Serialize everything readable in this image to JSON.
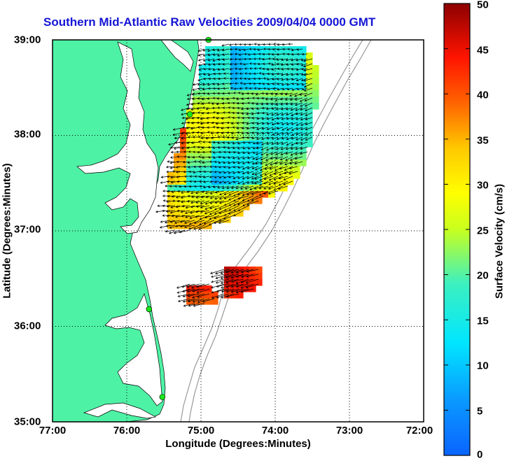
{
  "title": "Southern Mid-Atlantic Raw Velocities 2009/04/04 0000 GMT",
  "x_axis": {
    "label": "Longitude (Degrees:Minutes)",
    "ticks": [
      "77:00",
      "76:00",
      "75:00",
      "74:00",
      "73:00",
      "72:00"
    ]
  },
  "y_axis": {
    "label": "Latitude (Degrees:Minutes)",
    "ticks": [
      "39:00",
      "38:00",
      "37:00",
      "36:00",
      "35:00"
    ]
  },
  "colorbar": {
    "label": "Surface Velocity (cm/s)",
    "ticks": [
      "50",
      "45",
      "40",
      "35",
      "30",
      "25",
      "20",
      "15",
      "10",
      "5",
      "0"
    ],
    "range": [
      0,
      50
    ],
    "colormap": "jet"
  },
  "colors": {
    "land": "#4ef2a5",
    "water": "#ffffff",
    "title": "#1414d6",
    "station": "#19e619",
    "grid": "#000000"
  },
  "map": {
    "lon_range": [
      -77,
      -72
    ],
    "lat_range": [
      35,
      39
    ],
    "stations": [
      {
        "lon": -74.9,
        "lat": 39.0
      },
      {
        "lon": -75.15,
        "lat": 38.22
      },
      {
        "lon": -75.7,
        "lat": 36.18
      },
      {
        "lon": -75.52,
        "lat": 35.26
      }
    ]
  }
}
